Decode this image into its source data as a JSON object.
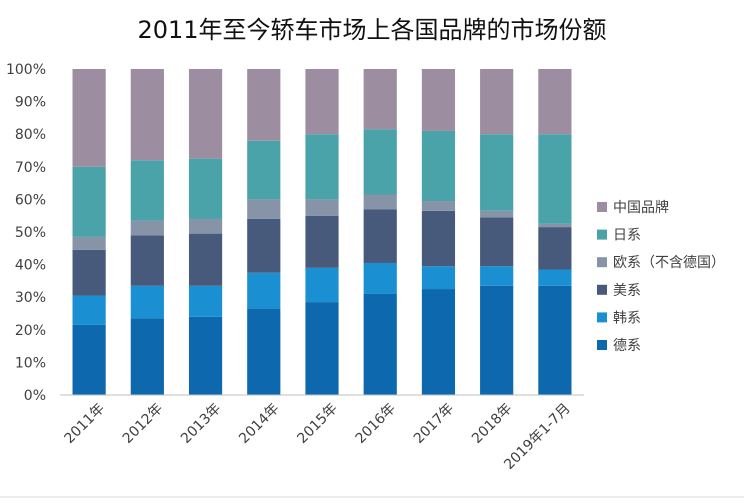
{
  "chart_data": {
    "type": "bar",
    "stacked": true,
    "title": "2011年至今轿车市场上各国品牌的市场份额",
    "categories": [
      "2011年",
      "2012年",
      "2013年",
      "2014年",
      "2015年",
      "2016年",
      "2017年",
      "2018年",
      "2019年1-7月"
    ],
    "series": [
      {
        "name": "德系",
        "color": "#0e68ad",
        "values": [
          21.5,
          23.5,
          24,
          26.5,
          28.5,
          31,
          32.5,
          33.5,
          33.5
        ]
      },
      {
        "name": "韩系",
        "color": "#1a8fd2",
        "values": [
          9,
          10,
          9.5,
          11,
          10.5,
          9.5,
          7,
          6,
          5
        ]
      },
      {
        "name": "美系",
        "color": "#475a7b",
        "values": [
          14,
          15.5,
          16,
          16.5,
          16,
          16.5,
          17,
          15,
          13
        ]
      },
      {
        "name": "欧系（不含德国）",
        "color": "#8794a8",
        "values": [
          4,
          4.5,
          4.5,
          6,
          5,
          4.5,
          3,
          2,
          1
        ]
      },
      {
        "name": "日系",
        "color": "#4ba3aa",
        "values": [
          21.5,
          18.5,
          18.5,
          18,
          20,
          20,
          21.5,
          23.5,
          27.5
        ]
      },
      {
        "name": "中国品牌",
        "color": "#9c8ea0",
        "values": [
          30,
          28,
          27.5,
          22,
          20,
          18.5,
          19,
          20,
          20
        ]
      }
    ],
    "ylim": [
      0,
      100
    ],
    "yticks": [
      0,
      10,
      20,
      30,
      40,
      50,
      60,
      70,
      80,
      90,
      100
    ],
    "ytick_suffix": "%",
    "legend_position": "right",
    "legend_order": [
      "中国品牌",
      "日系",
      "欧系（不含德国）",
      "美系",
      "韩系",
      "德系"
    ],
    "grid": false
  }
}
